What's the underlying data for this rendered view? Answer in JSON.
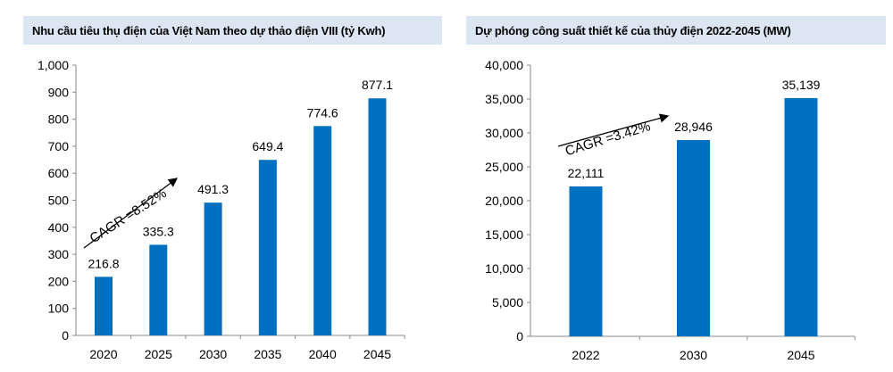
{
  "chart_data": [
    {
      "type": "bar",
      "title": "Nhu cầu tiêu thụ điện của Việt Nam theo dự thảo điện VIII (tỷ Kwh)",
      "categories": [
        "2020",
        "2025",
        "2030",
        "2035",
        "2040",
        "2045"
      ],
      "values": [
        216.8,
        335.3,
        491.3,
        649.4,
        774.6,
        877.1
      ],
      "data_labels": [
        "216.8",
        "335.3",
        "491.3",
        "649.4",
        "774.6",
        "877.1"
      ],
      "yticks": [
        "0",
        "100",
        "200",
        "300",
        "400",
        "500",
        "600",
        "700",
        "800",
        "900",
        "1,000"
      ],
      "ylim": [
        0,
        1000
      ],
      "annotation": "CAGR =8.52%",
      "bar_color": "#0070c0",
      "title_bg": "#dce6f2",
      "grid": false
    },
    {
      "type": "bar",
      "title": "Dự phóng công suất thiết kế của thủy điện 2022-2045 (MW)",
      "categories": [
        "2022",
        "2030",
        "2045"
      ],
      "values": [
        22111,
        28946,
        35139
      ],
      "data_labels": [
        "22,111",
        "28,946",
        "35,139"
      ],
      "yticks": [
        "0",
        "5,000",
        "10,000",
        "15,000",
        "20,000",
        "25,000",
        "30,000",
        "35,000",
        "40,000"
      ],
      "ylim": [
        0,
        40000
      ],
      "annotation": "CAGR =3.42%",
      "bar_color": "#0070c0",
      "title_bg": "#dce6f2",
      "grid": false
    }
  ]
}
